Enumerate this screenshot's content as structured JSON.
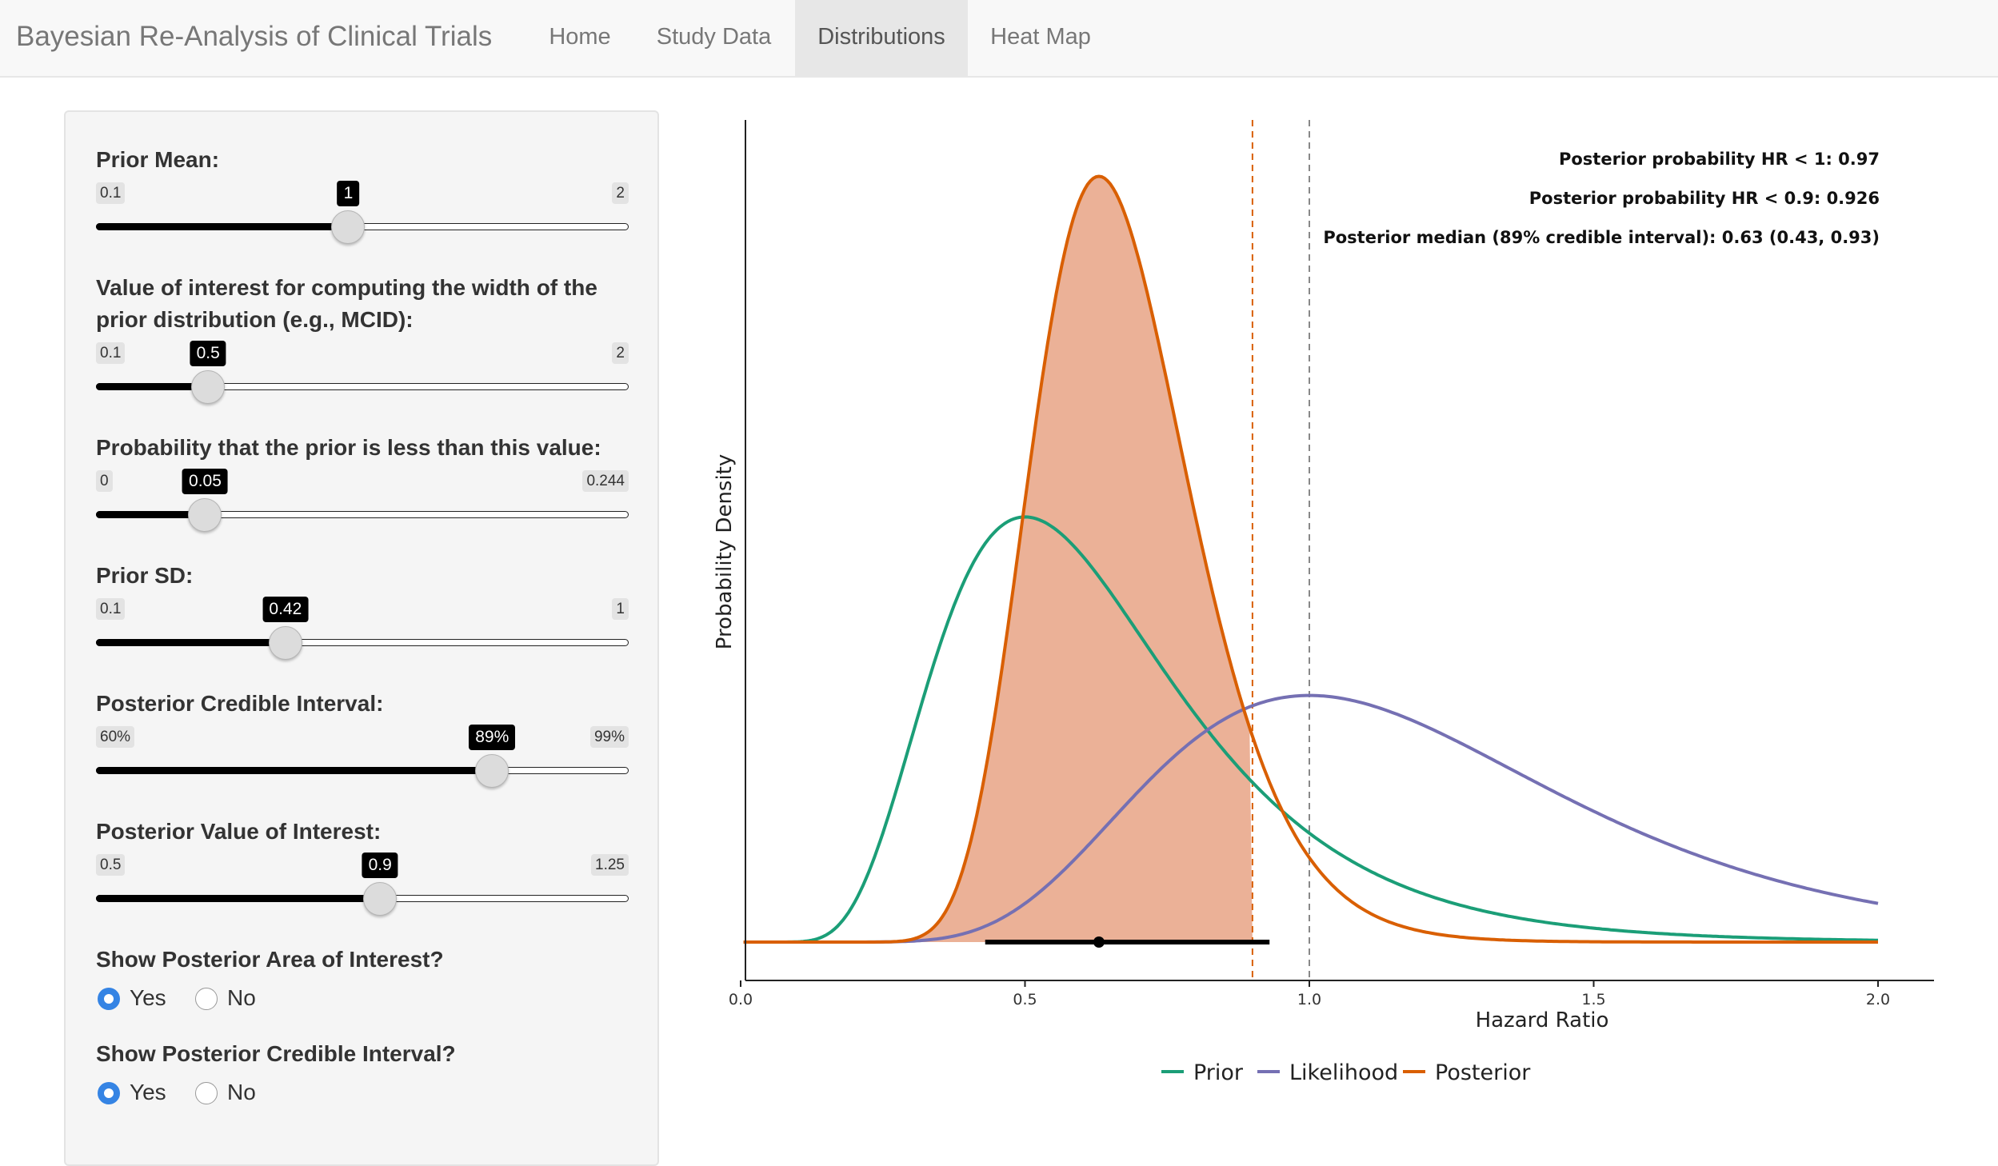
{
  "navbar": {
    "brand": "Bayesian Re-Analysis of Clinical Trials",
    "tabs": [
      {
        "label": "Home"
      },
      {
        "label": "Study Data"
      },
      {
        "label": "Distributions"
      },
      {
        "label": "Heat Map"
      }
    ],
    "active_tab": "Distributions"
  },
  "sidebar": {
    "prior_mean": {
      "label": "Prior Mean:",
      "min": "0.1",
      "max": "2",
      "value": "1",
      "fraction": 0.4737
    },
    "mcid": {
      "label": "Value of interest for computing the width of the prior distribution (e.g., MCID):",
      "min": "0.1",
      "max": "2",
      "value": "0.5",
      "fraction": 0.2105
    },
    "prior_prob": {
      "label": "Probability that the prior is less than this value:",
      "min": "0",
      "max": "0.244",
      "value": "0.05",
      "fraction": 0.2049
    },
    "prior_sd": {
      "label": "Prior SD:",
      "min": "0.1",
      "max": "1",
      "value": "0.42",
      "fraction": 0.3556
    },
    "credible_interval": {
      "label": "Posterior Credible Interval:",
      "min": "60%",
      "max": "99%",
      "value": "89%",
      "fraction": 0.7436
    },
    "value_of_interest": {
      "label": "Posterior Value of Interest:",
      "min": "0.5",
      "max": "1.25",
      "value": "0.9",
      "fraction": 0.5333
    },
    "show_area": {
      "label": "Show Posterior Area of Interest?",
      "yes": "Yes",
      "no": "No",
      "selected": "Yes"
    },
    "show_ci": {
      "label": "Show Posterior Credible Interval?",
      "yes": "Yes",
      "no": "No",
      "selected": "Yes"
    }
  },
  "colors": {
    "prior": "#1b9e77",
    "likelihood": "#7570b3",
    "posterior": "#d95f02",
    "posterior_fill": "#ebb197",
    "radio_checked": "#3584e4"
  },
  "chart_data": {
    "type": "line",
    "title": "",
    "xlabel": "Hazard Ratio",
    "ylabel": "Probability Density",
    "xlim": [
      0.0,
      2.0
    ],
    "xticks": [
      "0.0",
      "0.5",
      "1.0",
      "1.5",
      "2.0"
    ],
    "x_tick_values": [
      0.0,
      0.5,
      1.0,
      1.5,
      2.0
    ],
    "grid": false,
    "legend_position": "bottom",
    "annotations": [
      "Posterior probability HR < 1: 0.97",
      "Posterior probability HR < 0.9: 0.926",
      "Posterior median (89% credible interval): 0.63 (0.43, 0.93)"
    ],
    "series": [
      {
        "name": "Prior",
        "distribution": "lognormal",
        "median": 1.0,
        "mode": 0.5,
        "peak_density": 1.81
      },
      {
        "name": "Likelihood",
        "distribution": "lognormal",
        "mode": 1.0,
        "peak_density": 1.05
      },
      {
        "name": "Posterior",
        "distribution": "lognormal",
        "median": 0.63,
        "mode": 0.63,
        "peak_density": 3.26
      }
    ],
    "posterior_median": 0.63,
    "credible_interval": [
      0.43,
      0.93
    ],
    "shaded_area_upper": 0.9,
    "vlines": [
      {
        "x": 0.9,
        "color": "#d95f02",
        "style": "dashed"
      },
      {
        "x": 1.0,
        "color": "#888888",
        "style": "dashed"
      }
    ],
    "ylim": [
      0,
      3.5
    ]
  }
}
